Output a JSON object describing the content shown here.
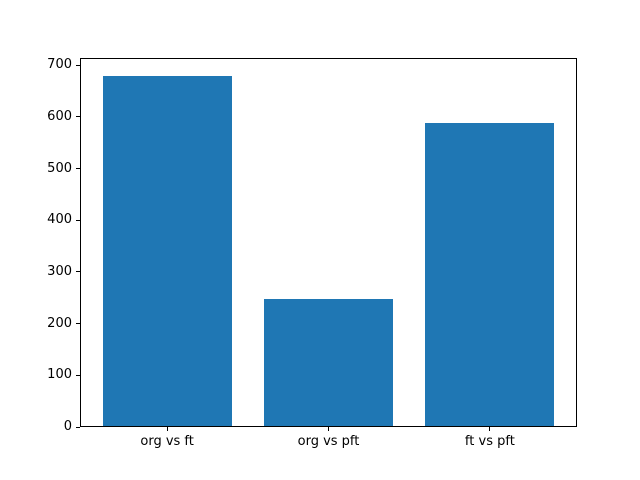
{
  "chart_data": {
    "type": "bar",
    "categories": [
      "org vs ft",
      "org vs pft",
      "ft vs pft"
    ],
    "values": [
      680,
      248,
      588
    ],
    "title": "",
    "xlabel": "",
    "ylabel": "",
    "ylim": [
      0,
      714
    ],
    "xlim": [
      -0.54,
      2.54
    ],
    "yticks": [
      0,
      100,
      200,
      300,
      400,
      500,
      600,
      700
    ],
    "ytick_labels": [
      "0",
      "100",
      "200",
      "300",
      "400",
      "500",
      "600",
      "700"
    ],
    "bar_width_frac": 0.8,
    "bar_color": "#1f77b4",
    "spine_color": "#000000",
    "text_color": "#000000",
    "background_color": "#ffffff",
    "grid": false,
    "legend": false
  }
}
